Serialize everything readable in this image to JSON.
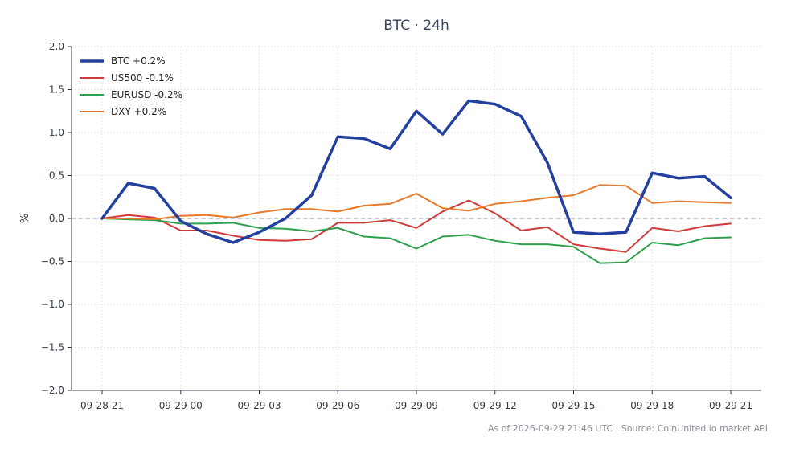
{
  "chart_data": {
    "type": "line",
    "title": "BTC · 24h",
    "ylabel": "%",
    "xlabel": "",
    "ylim": [
      -2.0,
      2.0
    ],
    "yticks": [
      "2.0",
      "1.5",
      "1.0",
      "0.5",
      "0.0",
      "−0.5",
      "−1.0",
      "−1.5",
      "−2.0"
    ],
    "ytick_values": [
      2.0,
      1.5,
      1.0,
      0.5,
      0.0,
      -0.5,
      -1.0,
      -1.5,
      -2.0
    ],
    "xticks": [
      "09-28 21",
      "09-29 00",
      "09-29 03",
      "09-29 06",
      "09-29 09",
      "09-29 12",
      "09-29 15",
      "09-29 18",
      "09-29 21"
    ],
    "xtick_hours": [
      0,
      3,
      6,
      9,
      12,
      15,
      18,
      21,
      24
    ],
    "x_hours": [
      0,
      1,
      2,
      3,
      4,
      5,
      6,
      7,
      8,
      9,
      10,
      11,
      12,
      13,
      14,
      15,
      16,
      17,
      18,
      19,
      20,
      21,
      22,
      23,
      24
    ],
    "grid": true,
    "zero_line": true,
    "legend_position": "top-left",
    "series": [
      {
        "name": "BTC +0.2%",
        "color": "#2340a0",
        "width": 3.5,
        "values": [
          0.0,
          0.41,
          0.35,
          -0.03,
          -0.18,
          -0.28,
          -0.16,
          0.0,
          0.27,
          0.95,
          0.93,
          0.81,
          1.25,
          0.98,
          1.37,
          1.33,
          1.19,
          0.65,
          -0.16,
          -0.18,
          -0.16,
          0.53,
          0.47,
          0.49,
          0.24
        ]
      },
      {
        "name": "US500 -0.1%",
        "color": "#d03a3a",
        "width": 2,
        "values": [
          0.0,
          0.04,
          0.01,
          -0.14,
          -0.14,
          -0.2,
          -0.25,
          -0.26,
          -0.24,
          -0.05,
          -0.05,
          -0.02,
          -0.11,
          0.08,
          0.21,
          0.06,
          -0.14,
          -0.1,
          -0.3,
          -0.35,
          -0.39,
          -0.11,
          -0.15,
          -0.09,
          -0.06
        ]
      },
      {
        "name": "EURUSD -0.2%",
        "color": "#2ca04a",
        "width": 2,
        "values": [
          0.0,
          -0.01,
          -0.02,
          -0.06,
          -0.06,
          -0.05,
          -0.11,
          -0.12,
          -0.15,
          -0.11,
          -0.21,
          -0.23,
          -0.35,
          -0.21,
          -0.19,
          -0.26,
          -0.3,
          -0.3,
          -0.33,
          -0.52,
          -0.51,
          -0.28,
          -0.31,
          -0.23,
          -0.22
        ]
      },
      {
        "name": "DXY +0.2%",
        "color": "#e87a2a",
        "width": 2,
        "values": [
          0.0,
          0.0,
          -0.01,
          0.03,
          0.04,
          0.01,
          0.07,
          0.11,
          0.11,
          0.08,
          0.15,
          0.17,
          0.29,
          0.12,
          0.09,
          0.17,
          0.2,
          0.24,
          0.27,
          0.39,
          0.38,
          0.18,
          0.2,
          0.19,
          0.18
        ]
      }
    ],
    "footer": "As of 2026-09-29 21:46 UTC · Source: CoinUnited.io market API"
  }
}
